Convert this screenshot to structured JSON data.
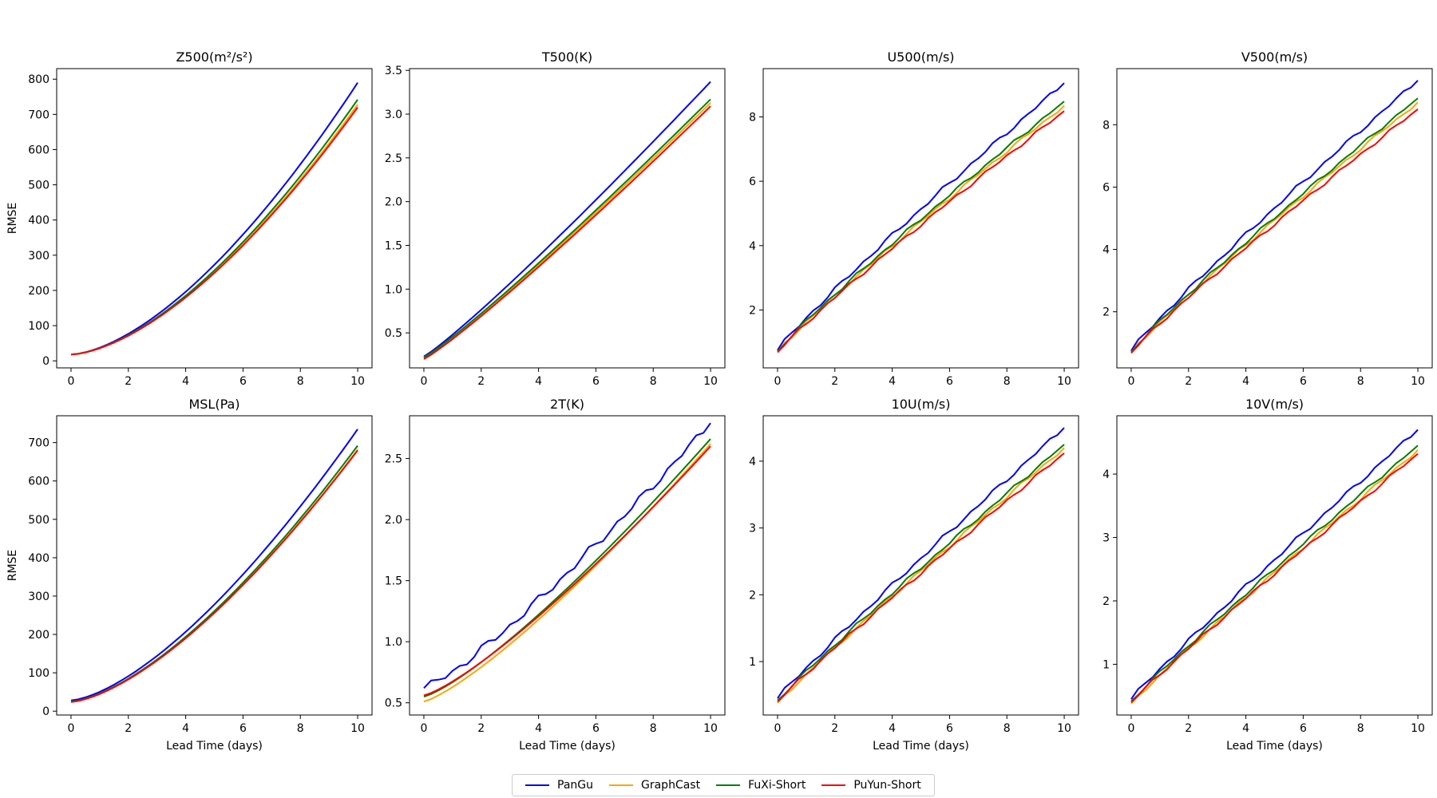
{
  "chart_data": {
    "type": "line",
    "xlabel": "Lead Time (days)",
    "ylabel": "RMSE",
    "x_range": [
      0,
      10
    ],
    "x_ticks": [
      0,
      2,
      4,
      6,
      8,
      10
    ],
    "series_names": [
      "PanGu",
      "GraphCast",
      "FuXi-Short",
      "PuYun-Short"
    ],
    "series_colors": [
      "#0000ff",
      "#ffa500",
      "#008000",
      "#ff0000"
    ],
    "panels": [
      {
        "title": "Z500(m²/s²)",
        "ylim": [
          -20,
          830
        ],
        "yticks": [
          0,
          100,
          200,
          300,
          400,
          500,
          600,
          700,
          800
        ],
        "series": [
          {
            "name": "PanGu",
            "start": 18,
            "end": 790,
            "exp": 1.6,
            "noise": 0
          },
          {
            "name": "GraphCast",
            "start": 18,
            "end": 728,
            "exp": 1.6,
            "noise": 0
          },
          {
            "name": "FuXi-Short",
            "start": 18,
            "end": 742,
            "exp": 1.6,
            "noise": 0
          },
          {
            "name": "PuYun-Short",
            "start": 18,
            "end": 720,
            "exp": 1.6,
            "noise": 0
          }
        ]
      },
      {
        "title": "T500(K)",
        "ylim": [
          0.1,
          3.52
        ],
        "yticks": [
          0.5,
          1.0,
          1.5,
          2.0,
          2.5,
          3.0,
          3.5
        ],
        "series": [
          {
            "name": "PanGu",
            "start": 0.23,
            "end": 3.37,
            "exp": 1.1,
            "noise": 0
          },
          {
            "name": "GraphCast",
            "start": 0.21,
            "end": 3.13,
            "exp": 1.1,
            "noise": 0
          },
          {
            "name": "FuXi-Short",
            "start": 0.22,
            "end": 3.17,
            "exp": 1.1,
            "noise": 0
          },
          {
            "name": "PuYun-Short",
            "start": 0.2,
            "end": 3.09,
            "exp": 1.1,
            "noise": 0
          }
        ]
      },
      {
        "title": "U500(m/s)",
        "ylim": [
          0.2,
          9.5
        ],
        "yticks": [
          2,
          4,
          6,
          8
        ],
        "series": [
          {
            "name": "PanGu",
            "start": 0.75,
            "end": 9.05,
            "exp": 0.92,
            "noise": 0.08
          },
          {
            "name": "GraphCast",
            "start": 0.7,
            "end": 8.35,
            "exp": 0.92,
            "noise": 0.06
          },
          {
            "name": "FuXi-Short",
            "start": 0.72,
            "end": 8.48,
            "exp": 0.92,
            "noise": 0.06
          },
          {
            "name": "PuYun-Short",
            "start": 0.68,
            "end": 8.18,
            "exp": 0.92,
            "noise": 0.06
          }
        ]
      },
      {
        "title": "V500(m/s)",
        "ylim": [
          0.2,
          9.8
        ],
        "yticks": [
          2,
          4,
          6,
          8
        ],
        "series": [
          {
            "name": "PanGu",
            "start": 0.75,
            "end": 9.42,
            "exp": 0.92,
            "noise": 0.08
          },
          {
            "name": "GraphCast",
            "start": 0.7,
            "end": 8.72,
            "exp": 0.92,
            "noise": 0.06
          },
          {
            "name": "FuXi-Short",
            "start": 0.72,
            "end": 8.85,
            "exp": 0.92,
            "noise": 0.06
          },
          {
            "name": "PuYun-Short",
            "start": 0.68,
            "end": 8.5,
            "exp": 0.92,
            "noise": 0.06
          }
        ]
      },
      {
        "title": "MSL(Pa)",
        "ylim": [
          -10,
          770
        ],
        "yticks": [
          0,
          100,
          200,
          300,
          400,
          500,
          600,
          700
        ],
        "series": [
          {
            "name": "PanGu",
            "start": 28,
            "end": 735,
            "exp": 1.5,
            "noise": 0
          },
          {
            "name": "GraphCast",
            "start": 24,
            "end": 682,
            "exp": 1.5,
            "noise": 0
          },
          {
            "name": "FuXi-Short",
            "start": 25,
            "end": 692,
            "exp": 1.5,
            "noise": 0
          },
          {
            "name": "PuYun-Short",
            "start": 24,
            "end": 680,
            "exp": 1.5,
            "noise": 0
          }
        ]
      },
      {
        "title": "2T(K)",
        "ylim": [
          0.4,
          2.85
        ],
        "yticks": [
          0.5,
          1.0,
          1.5,
          2.0,
          2.5
        ],
        "series": [
          {
            "name": "PanGu",
            "start": 0.62,
            "end": 2.79,
            "exp": 1.2,
            "noise": 0.04
          },
          {
            "name": "GraphCast",
            "start": 0.51,
            "end": 2.62,
            "exp": 1.25,
            "noise": 0
          },
          {
            "name": "FuXi-Short",
            "start": 0.55,
            "end": 2.66,
            "exp": 1.25,
            "noise": 0
          },
          {
            "name": "PuYun-Short",
            "start": 0.56,
            "end": 2.6,
            "exp": 1.25,
            "noise": 0
          }
        ]
      },
      {
        "title": "10U(m/s)",
        "ylim": [
          0.2,
          4.68
        ],
        "yticks": [
          1,
          2,
          3,
          4
        ],
        "series": [
          {
            "name": "PanGu",
            "start": 0.45,
            "end": 4.5,
            "exp": 0.95,
            "noise": 0.04
          },
          {
            "name": "GraphCast",
            "start": 0.38,
            "end": 4.2,
            "exp": 0.95,
            "noise": 0.03
          },
          {
            "name": "FuXi-Short",
            "start": 0.42,
            "end": 4.25,
            "exp": 0.95,
            "noise": 0.03
          },
          {
            "name": "PuYun-Short",
            "start": 0.4,
            "end": 4.12,
            "exp": 0.95,
            "noise": 0.03
          }
        ]
      },
      {
        "title": "10V(m/s)",
        "ylim": [
          0.2,
          4.92
        ],
        "yticks": [
          1,
          2,
          3,
          4
        ],
        "series": [
          {
            "name": "PanGu",
            "start": 0.45,
            "end": 4.7,
            "exp": 0.95,
            "noise": 0.04
          },
          {
            "name": "GraphCast",
            "start": 0.38,
            "end": 4.38,
            "exp": 0.95,
            "noise": 0.03
          },
          {
            "name": "FuXi-Short",
            "start": 0.42,
            "end": 4.45,
            "exp": 0.95,
            "noise": 0.03
          },
          {
            "name": "PuYun-Short",
            "start": 0.4,
            "end": 4.32,
            "exp": 0.95,
            "noise": 0.03
          }
        ]
      }
    ]
  },
  "legend": {
    "items": [
      {
        "label": "PanGu",
        "color": "#0000ff"
      },
      {
        "label": "GraphCast",
        "color": "#ffa500"
      },
      {
        "label": "FuXi-Short",
        "color": "#008000"
      },
      {
        "label": "PuYun-Short",
        "color": "#ff0000"
      }
    ]
  }
}
